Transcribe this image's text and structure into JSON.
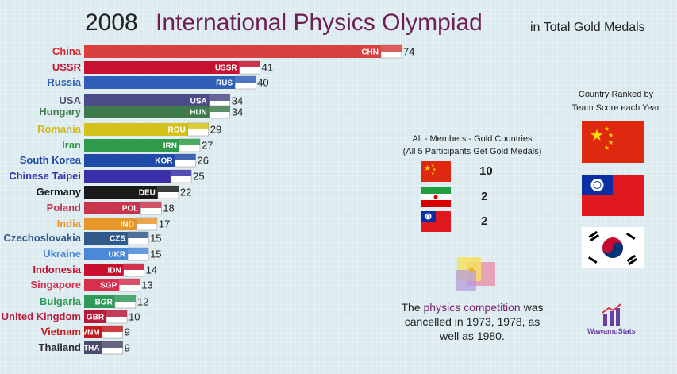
{
  "header": {
    "year": "2008",
    "title": "International Physics Olympiad",
    "subtitle": "in Total Gold Medals"
  },
  "chart_data": {
    "type": "bar",
    "title": "International Physics Olympiad",
    "orientation": "horizontal",
    "xlim": [
      0,
      74
    ],
    "categories": [
      "China",
      "USSR",
      "Russia",
      "USA",
      "Hungary",
      "Romania",
      "Iran",
      "South Korea",
      "Chinese Taipei",
      "Germany",
      "Poland",
      "India",
      "Czechoslovakia",
      "Ukraine",
      "Indonesia",
      "Singapore",
      "Bulgaria",
      "United Kingdom",
      "Vietnam",
      "Thailand"
    ],
    "codes": [
      "CHN",
      "USSR",
      "RUS",
      "USA",
      "HUN",
      "ROU",
      "IRN",
      "KOR",
      "",
      "DEU",
      "POL",
      "IND",
      "CZS",
      "UKR",
      "IDN",
      "SGP",
      "BGR",
      "GBR",
      "VNM",
      "THA"
    ],
    "values": [
      74,
      41,
      40,
      34,
      34,
      29,
      27,
      26,
      25,
      22,
      18,
      17,
      15,
      15,
      14,
      13,
      12,
      10,
      9,
      9
    ],
    "colors": [
      "#d94040",
      "#c41230",
      "#2f5fb8",
      "#4d4a8a",
      "#3e7a4a",
      "#d4c21a",
      "#2f9a48",
      "#1f4aa8",
      "#3a2fa8",
      "#1a1a1a",
      "#c8344e",
      "#e8962a",
      "#2f5a8a",
      "#4a88d8",
      "#c8102e",
      "#d6304e",
      "#2f9a58",
      "#b81a3a",
      "#c41a1a",
      "#4a4a6a"
    ],
    "label_colors": [
      "#d92b2b",
      "#c41230",
      "#2f5fb8",
      "#55507a",
      "#3e7a4a",
      "#d4b81a",
      "#2f9a48",
      "#1f4aa8",
      "#3a2fa8",
      "#1a1a1a",
      "#c8344e",
      "#e8962a",
      "#2f5a8a",
      "#4a88d8",
      "#c8102e",
      "#d6304e",
      "#2f9a58",
      "#b81a3a",
      "#c41a1a",
      "#2a2a3a"
    ]
  },
  "panel": {
    "ranked_line1": "Country Ranked by",
    "ranked_line2": "Team Score each Year",
    "all_line1": "All - Members - Gold Countries",
    "all_line2": "(All 5 Participants Get Gold Medals)",
    "counts": [
      "10",
      "2",
      "2"
    ]
  },
  "note": {
    "before": "The ",
    "highlight": "physics competition",
    "after": " was cancelled in 1973, 1978, as well as 1980."
  },
  "brand": "WawamuStats"
}
